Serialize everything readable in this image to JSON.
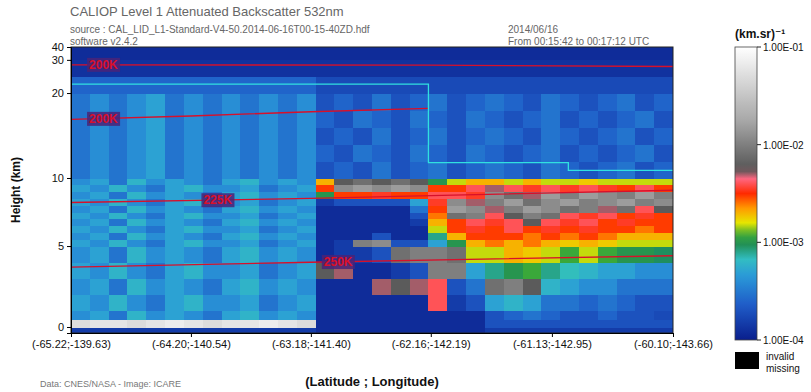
{
  "chart_data": {
    "type": "heatmap",
    "title": "CALIOP Level 1 Attenuated Backscatter 532nm",
    "subtitle": "source : CAL_LID_L1-Standard-V4-50.2014-06-16T00-15-40ZD.hdf",
    "annotations": [
      "software v2.4.2",
      "2014/06/16",
      "From 00:15:42 to 00:17:12 UTC",
      "Data: CNES/NASA - Image: ICARE",
      "invalid",
      "missing"
    ],
    "x_label": "(Latitude ; Longitude)",
    "y_label": "Height (km)",
    "xlim": [
      -65.22,
      -60.1
    ],
    "xticks": [
      {
        "value": -65.22,
        "label": "(-65.22;-139.63)"
      },
      {
        "value": -64.2,
        "label": "(-64.20;-140.54)"
      },
      {
        "value": -63.18,
        "label": "(-63.18;-141.40)"
      },
      {
        "value": -62.16,
        "label": "(-62.16;-142.19)"
      },
      {
        "value": -61.13,
        "label": "(-61.13;-142.95)"
      },
      {
        "value": -60.1,
        "label": "(-60.10;-143.66)"
      }
    ],
    "ylim": [
      -0.5,
      40
    ],
    "yticks": [
      0,
      5,
      10,
      20,
      30,
      40
    ],
    "x_edges": [
      -65.22,
      -65.06,
      -64.9,
      -64.74,
      -64.58,
      -64.42,
      -64.26,
      -64.1,
      -63.94,
      -63.78,
      -63.62,
      -63.46,
      -63.3,
      -63.14,
      -62.98,
      -62.82,
      -62.66,
      -62.5,
      -62.34,
      -62.18,
      -62.02,
      -61.86,
      -61.7,
      -61.54,
      -61.38,
      -61.22,
      -61.06,
      -60.9,
      -60.74,
      -60.58,
      -60.42,
      -60.26,
      -60.1
    ],
    "y_edges": [
      -0.5,
      0,
      0.5,
      1,
      2,
      3,
      4,
      5,
      5.5,
      6,
      6.5,
      7,
      7.5,
      8,
      8.5,
      9,
      9.5,
      10,
      12,
      14,
      16,
      18,
      20,
      25,
      30,
      40
    ],
    "cells": [
      [
        0.00015,
        0.00015,
        0.00015,
        0.00015,
        0.00015,
        0.00015,
        0.00015,
        0.00015,
        0.00015,
        0.00015,
        0.00015,
        0.00015,
        0.00015,
        0.00012,
        0.00012,
        0.00012,
        0.00012,
        0.00012,
        0.00012,
        0.00012,
        0.00012,
        0.00012,
        0.00015,
        0.00015,
        0.00015,
        0.00015,
        0.00015,
        0.00015,
        0.00015,
        0.00015,
        0.00015,
        0.00015
      ],
      [
        0.05,
        0.06,
        0.06,
        0.05,
        0.06,
        0.07,
        0.06,
        0.05,
        0.06,
        0.06,
        0.07,
        0.06,
        0.05,
        0.00012,
        0.00012,
        0.00012,
        0.00012,
        0.00012,
        0.00012,
        0.00012,
        0.00012,
        0.00012,
        0.0002,
        0.0002,
        0.0002,
        0.0002,
        0.0002,
        0.0002,
        0.0002,
        0.0002,
        0.0002,
        0.0002
      ],
      [
        0.0004,
        0.0005,
        0.0003,
        0.0006,
        0.0004,
        0.0005,
        0.0004,
        0.0003,
        0.0005,
        0.0006,
        0.0004,
        0.0005,
        0.0004,
        0.00012,
        0.00012,
        0.00012,
        0.00012,
        0.00012,
        0.00012,
        0.00012,
        0.00012,
        0.00012,
        0.0002,
        0.00025,
        0.0003,
        0.00025,
        0.0002,
        0.0002,
        0.00025,
        0.0002,
        0.0002,
        0.00018
      ],
      [
        0.0005,
        0.0004,
        0.0006,
        0.0004,
        0.0003,
        0.0005,
        0.0006,
        0.0004,
        0.0004,
        0.0005,
        0.0003,
        0.0004,
        0.0005,
        0.00012,
        0.00012,
        0.00012,
        0.00012,
        0.00012,
        0.00012,
        0.004,
        0.00015,
        0.0002,
        0.0005,
        0.0006,
        0.0005,
        0.0003,
        0.0003,
        0.00025,
        0.0003,
        0.00025,
        0.0002,
        0.0002
      ],
      [
        0.0004,
        0.0005,
        0.0003,
        0.0006,
        0.0004,
        0.0005,
        0.0004,
        0.0003,
        0.0005,
        0.0006,
        0.0004,
        0.0005,
        0.0004,
        0.00012,
        0.00012,
        0.00012,
        0.005,
        0.006,
        0.005,
        0.004,
        0.0002,
        0.0003,
        0.008,
        0.01,
        0.006,
        0.0006,
        0.0005,
        0.0004,
        0.0004,
        0.0003,
        0.0003,
        0.0003
      ],
      [
        0.0005,
        0.0004,
        0.0006,
        0.0004,
        0.0003,
        0.0005,
        0.0006,
        0.0004,
        0.0004,
        0.0005,
        0.0003,
        0.0004,
        0.0005,
        0.006,
        0.005,
        0.00012,
        0.00012,
        0.00015,
        0.0002,
        0.01,
        0.01,
        0.0005,
        0.0008,
        0.001,
        0.0012,
        0.0008,
        0.0007,
        0.0006,
        0.0005,
        0.0005,
        0.0004,
        0.0004
      ],
      [
        0.0004,
        0.0005,
        0.0003,
        0.0006,
        0.0004,
        0.0005,
        0.0004,
        0.0003,
        0.0005,
        0.0006,
        0.0004,
        0.0005,
        0.0004,
        0.00012,
        0.00015,
        0.00015,
        0.0002,
        0.008,
        0.01,
        0.01,
        0.008,
        0.0015,
        0.0015,
        0.002,
        0.0018,
        0.0015,
        0.0012,
        0.0015,
        0.0012,
        0.001,
        0.001,
        0.0009
      ],
      [
        0.0005,
        0.0004,
        0.0006,
        0.0004,
        0.0003,
        0.0005,
        0.0006,
        0.0004,
        0.0004,
        0.0005,
        0.0003,
        0.0004,
        0.0005,
        0.00012,
        0.00015,
        0.01,
        0.012,
        0.0002,
        0.0002,
        0.0005,
        0.001,
        0.002,
        0.0025,
        0.002,
        0.0025,
        0.002,
        0.0018,
        0.002,
        0.0018,
        0.0015,
        0.0015,
        0.0015
      ],
      [
        0.0004,
        0.0005,
        0.0003,
        0.0006,
        0.0004,
        0.0005,
        0.0004,
        0.0003,
        0.0005,
        0.0006,
        0.0004,
        0.0005,
        0.0004,
        0.00012,
        0.00012,
        0.00012,
        0.0002,
        0.00012,
        0.00012,
        0.0008,
        0.002,
        0.003,
        0.003,
        0.003,
        0.0025,
        0.003,
        0.0025,
        0.003,
        0.0025,
        0.002,
        0.002,
        0.002
      ],
      [
        0.0005,
        0.0004,
        0.0006,
        0.0004,
        0.0003,
        0.0005,
        0.0006,
        0.0004,
        0.0004,
        0.0005,
        0.0003,
        0.0004,
        0.0005,
        0.00012,
        0.00012,
        0.00012,
        0.00012,
        0.00012,
        0.00012,
        0.0015,
        0.003,
        0.0035,
        0.003,
        0.004,
        0.003,
        0.0035,
        0.003,
        0.0035,
        0.003,
        0.003,
        0.0025,
        0.003
      ],
      [
        0.0004,
        0.0005,
        0.0003,
        0.0006,
        0.0004,
        0.0005,
        0.0004,
        0.0003,
        0.0005,
        0.0006,
        0.0004,
        0.0005,
        0.0004,
        0.00012,
        0.00012,
        0.00012,
        0.00012,
        0.00012,
        0.00015,
        0.002,
        0.003,
        0.004,
        0.0035,
        0.004,
        0.006,
        0.004,
        0.0035,
        0.004,
        0.003,
        0.0035,
        0.003,
        0.003
      ],
      [
        0.0005,
        0.0004,
        0.0006,
        0.0004,
        0.0003,
        0.0005,
        0.0006,
        0.0004,
        0.0004,
        0.0005,
        0.0003,
        0.0004,
        0.0005,
        0.00012,
        0.00012,
        0.00012,
        0.00012,
        0.00012,
        0.0002,
        0.0025,
        0.008,
        0.01,
        0.004,
        0.006,
        0.01,
        0.008,
        0.004,
        0.0035,
        0.004,
        0.003,
        0.0035,
        0.003
      ],
      [
        0.0004,
        0.0005,
        0.0003,
        0.0006,
        0.0004,
        0.0005,
        0.0004,
        0.0003,
        0.0005,
        0.0006,
        0.0004,
        0.0005,
        0.0004,
        0.00012,
        0.00012,
        0.00012,
        0.00012,
        0.00012,
        0.0003,
        0.003,
        0.015,
        0.012,
        0.005,
        0.01,
        0.015,
        0.012,
        0.008,
        0.01,
        0.005,
        0.008,
        0.004,
        0.006
      ],
      [
        0.0005,
        0.0004,
        0.0006,
        0.0004,
        0.0003,
        0.0005,
        0.0006,
        0.0004,
        0.0004,
        0.0005,
        0.0003,
        0.0004,
        0.0005,
        0.00015,
        0.0002,
        0.0002,
        0.0002,
        0.0002,
        0.0005,
        0.0035,
        0.012,
        0.005,
        0.01,
        0.015,
        0.008,
        0.012,
        0.015,
        0.01,
        0.012,
        0.015,
        0.01,
        0.012
      ],
      [
        0.0004,
        0.0005,
        0.0003,
        0.0006,
        0.0004,
        0.0005,
        0.0004,
        0.0003,
        0.0005,
        0.0006,
        0.0004,
        0.0005,
        0.0004,
        0.001,
        0.003,
        0.003,
        0.0035,
        0.003,
        0.003,
        0.004,
        0.004,
        0.0035,
        0.012,
        0.008,
        0.005,
        0.015,
        0.01,
        0.015,
        0.012,
        0.01,
        0.015,
        0.01
      ],
      [
        0.0005,
        0.0004,
        0.0006,
        0.0004,
        0.0003,
        0.0005,
        0.0006,
        0.0004,
        0.0004,
        0.0005,
        0.0003,
        0.0004,
        0.0005,
        0.003,
        0.012,
        0.015,
        0.012,
        0.015,
        0.012,
        0.003,
        0.003,
        0.004,
        0.005,
        0.004,
        0.0035,
        0.004,
        0.0035,
        0.004,
        0.0035,
        0.003,
        0.004,
        0.003
      ],
      [
        0.0004,
        0.0005,
        0.0003,
        0.0006,
        0.0004,
        0.0005,
        0.0004,
        0.0003,
        0.0005,
        0.0006,
        0.0004,
        0.0005,
        0.0004,
        0.002,
        0.006,
        0.008,
        0.006,
        0.008,
        0.006,
        0.001,
        0.0015,
        0.002,
        0.002,
        0.0015,
        0.002,
        0.0015,
        0.0015,
        0.0018,
        0.0015,
        0.0015,
        0.0015,
        0.0015
      ],
      [
        0.0003,
        0.0004,
        0.0003,
        0.0004,
        0.0005,
        0.0003,
        0.0004,
        0.0003,
        0.0004,
        0.0003,
        0.0004,
        0.0003,
        0.0004,
        0.0002,
        0.00025,
        0.0002,
        0.0003,
        0.0002,
        0.00025,
        0.0003,
        0.0002,
        0.00025,
        0.0003,
        0.00025,
        0.0002,
        0.0003,
        0.00025,
        0.0002,
        0.00025,
        0.0003,
        0.0002,
        0.00025
      ],
      [
        0.0003,
        0.0004,
        0.0003,
        0.0004,
        0.0005,
        0.0003,
        0.0004,
        0.0003,
        0.0004,
        0.0003,
        0.0004,
        0.0003,
        0.0004,
        0.00025,
        0.0002,
        0.0003,
        0.00025,
        0.0002,
        0.0003,
        0.00025,
        0.0002,
        0.0003,
        0.00025,
        0.0002,
        0.00025,
        0.0003,
        0.0002,
        0.00025,
        0.0002,
        0.00025,
        0.0003,
        0.0002
      ],
      [
        0.0003,
        0.0004,
        0.0003,
        0.0004,
        0.0005,
        0.0003,
        0.0004,
        0.0003,
        0.0004,
        0.0003,
        0.0004,
        0.0003,
        0.0004,
        0.0002,
        0.00025,
        0.0002,
        0.0003,
        0.0002,
        0.00025,
        0.0003,
        0.0002,
        0.00025,
        0.0003,
        0.00025,
        0.0002,
        0.0003,
        0.00025,
        0.0002,
        0.00025,
        0.0003,
        0.0002,
        0.00025
      ],
      [
        0.0003,
        0.0004,
        0.0003,
        0.0004,
        0.0005,
        0.0003,
        0.0004,
        0.0003,
        0.0004,
        0.0003,
        0.0004,
        0.0003,
        0.0004,
        0.00025,
        0.0002,
        0.0003,
        0.00025,
        0.0002,
        0.0003,
        0.00025,
        0.0002,
        0.0003,
        0.00025,
        0.0002,
        0.00025,
        0.0003,
        0.0002,
        0.00025,
        0.0002,
        0.00025,
        0.0003,
        0.0002
      ],
      [
        0.0003,
        0.0004,
        0.0003,
        0.0004,
        0.0005,
        0.0003,
        0.0004,
        0.0003,
        0.0004,
        0.0003,
        0.0004,
        0.0003,
        0.0004,
        0.0002,
        0.00025,
        0.0002,
        0.0003,
        0.0002,
        0.00025,
        0.0003,
        0.0002,
        0.00025,
        0.0003,
        0.00025,
        0.0002,
        0.0003,
        0.00025,
        0.0002,
        0.00025,
        0.0003,
        0.0002,
        0.00025
      ],
      [
        0.00025,
        0.00025,
        0.00025,
        0.00025,
        0.00025,
        0.00025,
        0.00025,
        0.00025,
        0.00025,
        0.00025,
        0.00025,
        0.00025,
        0.00025,
        0.00018,
        0.00018,
        0.00018,
        0.00018,
        0.00018,
        0.00018,
        0.00018,
        0.00018,
        0.00018,
        0.00018,
        0.00018,
        0.00018,
        0.00018,
        0.00018,
        0.00018,
        0.00018,
        0.00018,
        0.00018,
        0.00018
      ],
      [
        0.00013,
        0.00013,
        0.00013,
        0.00013,
        0.00013,
        0.00013,
        0.00013,
        0.00013,
        0.00013,
        0.00013,
        0.00013,
        0.00013,
        0.00013,
        0.00013,
        0.00013,
        0.00013,
        0.00013,
        0.00013,
        0.00013,
        0.00013,
        0.00013,
        0.00013,
        0.00013,
        0.00013,
        0.00013,
        0.00013,
        0.00013,
        0.00013,
        0.00013,
        0.00013,
        0.00013,
        0.00013
      ],
      [
        0.00012,
        0.00012,
        0.00012,
        0.00012,
        0.00012,
        0.00012,
        0.00012,
        0.00012,
        0.00012,
        0.00012,
        0.00012,
        0.00012,
        0.00012,
        0.00012,
        0.00012,
        0.00012,
        0.00012,
        0.00012,
        0.00012,
        0.00012,
        0.00012,
        0.00012,
        0.00012,
        0.00012,
        0.00012,
        0.00012,
        0.00012,
        0.00012,
        0.00012,
        0.00012,
        0.00012,
        0.00012
      ]
    ],
    "colorbar": {
      "label": "(km.sr)⁻¹",
      "log": true,
      "range": [
        0.0001,
        0.1
      ],
      "ticks": [
        {
          "value": 0.1,
          "label": "1.00E-01"
        },
        {
          "value": 0.01,
          "label": "1.00E-02"
        },
        {
          "value": 0.001,
          "label": "1.00E-03"
        },
        {
          "value": 0.0001,
          "label": "1.00E-04"
        }
      ]
    },
    "series": [
      {
        "name": "200K",
        "type": "line",
        "color": "#d8102a",
        "x": [
          -65.22,
          -62.18,
          -60.1
        ],
        "values": [
          28.5,
          28.4,
          28.0
        ]
      },
      {
        "name": "200K",
        "type": "line",
        "color": "#d8102a",
        "x": [
          -65.22,
          -64.2,
          -63.18,
          -62.18
        ],
        "values": [
          16.9,
          17.3,
          17.8,
          18.2
        ]
      },
      {
        "name": "225K",
        "type": "line",
        "color": "#d8102a",
        "x": [
          -65.22,
          -63.18,
          -62.16,
          -60.1
        ],
        "values": [
          8.2,
          8.5,
          8.7,
          9.1
        ]
      },
      {
        "name": "250K",
        "type": "line",
        "color": "#d8102a",
        "x": [
          -65.22,
          -63.18,
          -60.1
        ],
        "values": [
          3.7,
          4.0,
          4.4
        ]
      },
      {
        "type": "line",
        "color": "#30e0e0",
        "x": [
          -65.22,
          -62.18,
          -62.18,
          -60.99,
          -60.99,
          -60.1
        ],
        "values": [
          22.7,
          22.7,
          11.8,
          11.8,
          10.9,
          10.9
        ]
      }
    ]
  }
}
